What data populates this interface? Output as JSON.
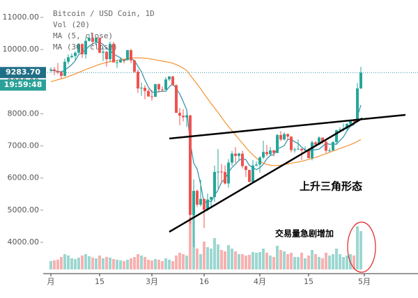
{
  "chart_data": {
    "type": "candlestick",
    "title": "Bitcoin / USD Coin, 1D",
    "volume_label": "Vol (20)",
    "x": [
      "02-01",
      "02-02",
      "02-03",
      "02-04",
      "02-05",
      "02-06",
      "02-07",
      "02-08",
      "02-09",
      "02-10",
      "02-11",
      "02-12",
      "02-13",
      "02-14",
      "02-15",
      "02-16",
      "02-17",
      "02-18",
      "02-19",
      "02-20",
      "02-21",
      "02-22",
      "02-23",
      "02-24",
      "02-25",
      "02-26",
      "02-27",
      "02-28",
      "02-29",
      "03-01",
      "03-02",
      "03-03",
      "03-04",
      "03-05",
      "03-06",
      "03-07",
      "03-08",
      "03-09",
      "03-10",
      "03-11",
      "03-12",
      "03-13",
      "03-14",
      "03-15",
      "03-16",
      "03-17",
      "03-18",
      "03-19",
      "03-20",
      "03-21",
      "03-22",
      "03-23",
      "03-24",
      "03-25",
      "03-26",
      "03-27",
      "03-28",
      "03-29",
      "03-30",
      "03-31",
      "04-01",
      "04-02",
      "04-03",
      "04-04",
      "04-05",
      "04-06",
      "04-07",
      "04-08",
      "04-09",
      "04-10",
      "04-11",
      "04-12",
      "04-13",
      "04-14",
      "04-15",
      "04-16",
      "04-17",
      "04-18",
      "04-19",
      "04-20",
      "04-21",
      "04-22",
      "04-23",
      "04-24",
      "04-25",
      "04-26",
      "04-27",
      "04-28",
      "04-29",
      "04-30"
    ],
    "ohlc": [
      [
        9350,
        9450,
        9300,
        9380
      ],
      [
        9380,
        9460,
        9200,
        9330
      ],
      [
        9330,
        9580,
        9230,
        9290
      ],
      [
        9290,
        9340,
        9100,
        9180
      ],
      [
        9180,
        9720,
        9160,
        9620
      ],
      [
        9620,
        9850,
        9540,
        9760
      ],
      [
        9760,
        9880,
        9730,
        9800
      ],
      [
        9800,
        9940,
        9680,
        9900
      ],
      [
        9900,
        10200,
        9880,
        10170
      ],
      [
        10170,
        10190,
        9740,
        9850
      ],
      [
        9850,
        10380,
        9720,
        10270
      ],
      [
        10270,
        10470,
        10250,
        10360
      ],
      [
        10360,
        10520,
        10100,
        10240
      ],
      [
        10240,
        10380,
        10120,
        10360
      ],
      [
        10360,
        10380,
        9880,
        9900
      ],
      [
        9900,
        10060,
        9640,
        9930
      ],
      [
        9930,
        9960,
        9460,
        9700
      ],
      [
        9700,
        10250,
        9610,
        10180
      ],
      [
        10180,
        10240,
        9590,
        9600
      ],
      [
        9600,
        9680,
        9430,
        9600
      ],
      [
        9600,
        9760,
        9580,
        9690
      ],
      [
        9690,
        9700,
        9570,
        9670
      ],
      [
        9670,
        9990,
        9660,
        9980
      ],
      [
        9980,
        10020,
        9570,
        9660
      ],
      [
        9660,
        9670,
        9270,
        9310
      ],
      [
        9310,
        9380,
        8650,
        8790
      ],
      [
        8790,
        8970,
        8560,
        8810
      ],
      [
        8810,
        8890,
        8450,
        8710
      ],
      [
        8710,
        8780,
        8530,
        8540
      ],
      [
        8540,
        8750,
        8410,
        8530
      ],
      [
        8530,
        8940,
        8520,
        8920
      ],
      [
        8920,
        8950,
        8660,
        8760
      ],
      [
        8760,
        8850,
        8680,
        8750
      ],
      [
        8750,
        9140,
        8740,
        9070
      ],
      [
        9070,
        9180,
        9020,
        9160
      ],
      [
        9160,
        9180,
        8870,
        8890
      ],
      [
        8890,
        8910,
        8020,
        8030
      ],
      [
        8030,
        8180,
        7640,
        7940
      ],
      [
        7940,
        8140,
        7760,
        7890
      ],
      [
        7890,
        7970,
        7590,
        7950
      ],
      [
        7950,
        7970,
        4580,
        4850
      ],
      [
        4850,
        5960,
        3850,
        5600
      ],
      [
        5600,
        5640,
        5100,
        5170
      ],
      [
        5170,
        5950,
        5110,
        5350
      ],
      [
        5350,
        5360,
        4440,
        5010
      ],
      [
        5010,
        5520,
        4970,
        5330
      ],
      [
        5330,
        5420,
        5050,
        5410
      ],
      [
        5410,
        6390,
        5260,
        6190
      ],
      [
        6190,
        6900,
        5680,
        6200
      ],
      [
        6200,
        6440,
        5860,
        6190
      ],
      [
        6190,
        6390,
        5800,
        5830
      ],
      [
        5830,
        6590,
        5700,
        6480
      ],
      [
        6480,
        6840,
        6380,
        6760
      ],
      [
        6760,
        6960,
        6470,
        6690
      ],
      [
        6690,
        6790,
        6540,
        6760
      ],
      [
        6760,
        6850,
        6300,
        6370
      ],
      [
        6370,
        6380,
        6030,
        6250
      ],
      [
        6250,
        6260,
        5870,
        5880
      ],
      [
        5880,
        6560,
        5860,
        6390
      ],
      [
        6390,
        6520,
        6360,
        6420
      ],
      [
        6420,
        6680,
        6170,
        6640
      ],
      [
        6640,
        7160,
        6590,
        6810
      ],
      [
        6810,
        7030,
        6680,
        6740
      ],
      [
        6740,
        6970,
        6680,
        6860
      ],
      [
        6860,
        6880,
        6670,
        6780
      ],
      [
        6780,
        7370,
        6770,
        7340
      ],
      [
        7340,
        7460,
        7150,
        7200
      ],
      [
        7200,
        7420,
        7170,
        7370
      ],
      [
        7370,
        7380,
        7170,
        7290
      ],
      [
        7290,
        7300,
        6800,
        6870
      ],
      [
        6870,
        6950,
        6790,
        6890
      ],
      [
        6890,
        7200,
        6880,
        6910
      ],
      [
        6910,
        6920,
        6560,
        6860
      ],
      [
        6860,
        6980,
        6800,
        6880
      ],
      [
        6880,
        6930,
        6610,
        6620
      ],
      [
        6620,
        7160,
        6550,
        7110
      ],
      [
        7110,
        7150,
        6990,
        7040
      ],
      [
        7040,
        7300,
        7030,
        7260
      ],
      [
        7260,
        7260,
        7070,
        7130
      ],
      [
        7130,
        7200,
        6780,
        6850
      ],
      [
        6850,
        6940,
        6800,
        6860
      ],
      [
        6860,
        7150,
        6850,
        7120
      ],
      [
        7120,
        7500,
        7050,
        7490
      ],
      [
        7490,
        7580,
        7470,
        7510
      ],
      [
        7510,
        7700,
        7450,
        7540
      ],
      [
        7540,
        7700,
        7480,
        7690
      ],
      [
        7690,
        7800,
        7650,
        7790
      ],
      [
        7790,
        7800,
        7680,
        7760
      ],
      [
        7760,
        8960,
        7740,
        8790
      ],
      [
        8790,
        9460,
        8770,
        9283.7
      ]
    ],
    "volume": [
      12,
      13,
      14,
      18,
      22,
      20,
      16,
      15,
      17,
      20,
      22,
      19,
      17,
      16,
      20,
      16,
      18,
      17,
      15,
      14,
      13,
      12,
      14,
      16,
      18,
      22,
      20,
      18,
      14,
      13,
      15,
      14,
      12,
      16,
      14,
      12,
      20,
      24,
      22,
      20,
      75,
      88,
      30,
      22,
      40,
      32,
      30,
      45,
      36,
      28,
      26,
      35,
      30,
      26,
      22,
      22,
      20,
      21,
      25,
      24,
      25,
      30,
      24,
      20,
      18,
      34,
      28,
      26,
      22,
      24,
      18,
      18,
      24,
      16,
      20,
      28,
      22,
      18,
      16,
      24,
      20,
      22,
      30,
      22,
      18,
      20,
      22,
      20,
      62,
      55
    ],
    "series": [
      {
        "name": "MA (5, close)",
        "color": "#2a8fa8",
        "values": [
          9350,
          9340,
          9320,
          9300,
          9360,
          9440,
          9530,
          9650,
          9850,
          9900,
          9990,
          10110,
          10180,
          10220,
          10220,
          10160,
          10030,
          9980,
          9860,
          9800,
          9740,
          9640,
          9720,
          9720,
          9660,
          9480,
          9310,
          9050,
          8830,
          8680,
          8660,
          8690,
          8700,
          8700,
          8840,
          8930,
          8780,
          8620,
          8380,
          8120,
          7130,
          6460,
          6280,
          5800,
          5200,
          5300,
          5260,
          5460,
          5630,
          5870,
          5970,
          6180,
          6330,
          6430,
          6550,
          6610,
          6570,
          6390,
          6330,
          6260,
          6320,
          6430,
          6600,
          6700,
          6730,
          6910,
          6950,
          7010,
          7200,
          7210,
          7130,
          7070,
          6960,
          6880,
          6830,
          6870,
          6880,
          6900,
          6990,
          7080,
          7050,
          7060,
          7050,
          7170,
          7280,
          7470,
          7610,
          7660,
          7920,
          8270
        ]
      },
      {
        "name": "MA (30, close)",
        "color": "#f5922f",
        "values": [
          9000,
          9030,
          9060,
          9090,
          9120,
          9160,
          9200,
          9240,
          9290,
          9330,
          9380,
          9420,
          9460,
          9500,
          9540,
          9570,
          9600,
          9620,
          9640,
          9660,
          9680,
          9700,
          9720,
          9730,
          9740,
          9740,
          9740,
          9730,
          9720,
          9700,
          9680,
          9660,
          9640,
          9620,
          9600,
          9570,
          9530,
          9480,
          9420,
          9350,
          9200,
          9060,
          8920,
          8780,
          8620,
          8470,
          8320,
          8180,
          8040,
          7890,
          7740,
          7600,
          7470,
          7340,
          7210,
          7080,
          6950,
          6830,
          6720,
          6620,
          6530,
          6460,
          6420,
          6400,
          6390,
          6390,
          6400,
          6420,
          6440,
          6460,
          6480,
          6500,
          6520,
          6550,
          6580,
          6610,
          6640,
          6680,
          6720,
          6760,
          6800,
          6840,
          6880,
          6920,
          6960,
          7000,
          7040,
          7080,
          7140,
          7200
        ]
      }
    ],
    "up_color": "#26a69a",
    "down_color": "#ef5350",
    "ylim": [
      3024,
      11542
    ],
    "yticks": [
      {
        "value": 4000,
        "label": "4000.00"
      },
      {
        "value": 5000,
        "label": "5000.00"
      },
      {
        "value": 6000,
        "label": "6000.00"
      },
      {
        "value": 7000,
        "label": "7000.00"
      },
      {
        "value": 8000,
        "label": "8000.00"
      },
      {
        "value": 9000,
        "label": "9000.00"
      },
      {
        "value": 10000,
        "label": "10000.00"
      },
      {
        "value": 11000,
        "label": "11000.00"
      }
    ],
    "xticks": [
      {
        "value": "02-01",
        "label": "月"
      },
      {
        "value": "02-15",
        "label": "15"
      },
      {
        "value": "03-01",
        "label": "3月"
      },
      {
        "value": "03-16",
        "label": "16"
      },
      {
        "value": "04-01",
        "label": "4月"
      },
      {
        "value": "04-15",
        "label": "15"
      },
      {
        "value": "05-01",
        "label": "5月"
      }
    ],
    "last_label": "9283.70",
    "time_label": "19:59:48",
    "annotations": [
      "上升三角形态",
      "交易量急剧增加"
    ]
  }
}
